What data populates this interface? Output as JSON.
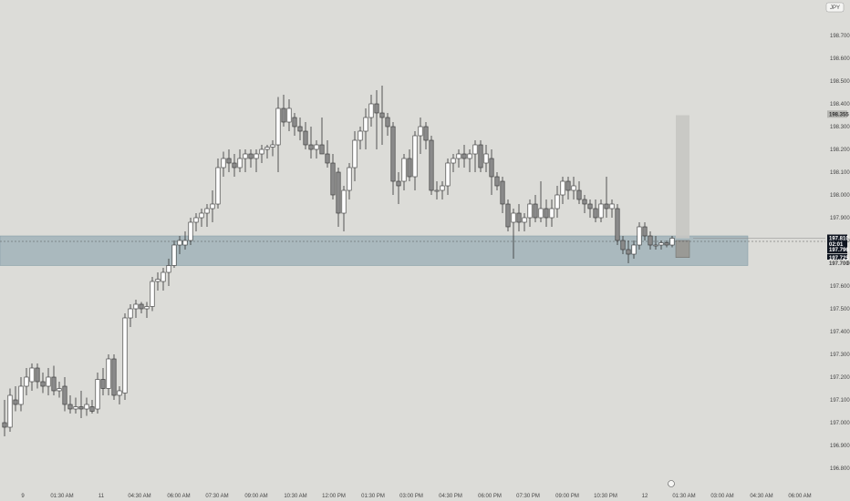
{
  "symbol_currency": "JPY",
  "chart_data": {
    "type": "candlestick",
    "y_axis": {
      "ylim": [
        196.75,
        198.95
      ],
      "ticks": [
        196.8,
        196.9,
        197.0,
        197.1,
        197.2,
        197.3,
        197.4,
        197.5,
        197.6,
        197.7,
        197.8,
        197.9,
        198.0,
        198.1,
        198.2,
        198.3,
        198.4,
        198.5,
        198.6,
        198.7
      ],
      "tick_labels": [
        "196.800",
        "196.900",
        "197.000",
        "197.100",
        "197.200",
        "197.300",
        "197.400",
        "197.500",
        "197.600",
        "197.700",
        "197.800",
        "197.900",
        "198.000",
        "198.100",
        "198.200",
        "198.300",
        "198.400",
        "198.500",
        "198.600",
        "198.700"
      ]
    },
    "x_axis": {
      "labels": [
        "9",
        "01:30 AM",
        "11",
        "04:30 AM",
        "06:00 AM",
        "07:30 AM",
        "09:00 AM",
        "10:30 AM",
        "12:00 PM",
        "01:30 PM",
        "03:00 PM",
        "04:30 PM",
        "06:00 PM",
        "07:30 PM",
        "09:00 PM",
        "10:30 PM",
        "12",
        "01:30 AM",
        "03:00 AM",
        "04:30 AM",
        "06:00 AM"
      ],
      "label_positions": [
        25,
        68,
        111,
        153,
        196,
        238,
        281,
        324,
        366,
        409,
        451,
        494,
        537,
        579,
        622,
        664,
        707,
        750,
        792,
        835,
        877
      ]
    },
    "candles": [
      {
        "x": 5,
        "o": 197.0,
        "h": 197.1,
        "l": 196.94,
        "c": 196.98
      },
      {
        "x": 11,
        "o": 196.98,
        "h": 197.15,
        "l": 196.96,
        "c": 197.12
      },
      {
        "x": 17,
        "o": 197.1,
        "h": 197.16,
        "l": 197.05,
        "c": 197.08
      },
      {
        "x": 23,
        "o": 197.08,
        "h": 197.2,
        "l": 197.05,
        "c": 197.16
      },
      {
        "x": 29,
        "o": 197.16,
        "h": 197.24,
        "l": 197.12,
        "c": 197.2
      },
      {
        "x": 35,
        "o": 197.18,
        "h": 197.26,
        "l": 197.14,
        "c": 197.24
      },
      {
        "x": 41,
        "o": 197.24,
        "h": 197.26,
        "l": 197.15,
        "c": 197.18
      },
      {
        "x": 47,
        "o": 197.18,
        "h": 197.22,
        "l": 197.13,
        "c": 197.16
      },
      {
        "x": 53,
        "o": 197.16,
        "h": 197.24,
        "l": 197.12,
        "c": 197.2
      },
      {
        "x": 59,
        "o": 197.2,
        "h": 197.25,
        "l": 197.12,
        "c": 197.14
      },
      {
        "x": 65,
        "o": 197.14,
        "h": 197.18,
        "l": 197.11,
        "c": 197.15
      },
      {
        "x": 71,
        "o": 197.16,
        "h": 197.2,
        "l": 197.05,
        "c": 197.08
      },
      {
        "x": 77,
        "o": 197.08,
        "h": 197.12,
        "l": 197.04,
        "c": 197.06
      },
      {
        "x": 83,
        "o": 197.06,
        "h": 197.11,
        "l": 197.04,
        "c": 197.07
      },
      {
        "x": 89,
        "o": 197.07,
        "h": 197.14,
        "l": 197.02,
        "c": 197.06
      },
      {
        "x": 95,
        "o": 197.06,
        "h": 197.11,
        "l": 197.03,
        "c": 197.08
      },
      {
        "x": 101,
        "o": 197.07,
        "h": 197.1,
        "l": 197.04,
        "c": 197.05
      },
      {
        "x": 107,
        "o": 197.06,
        "h": 197.22,
        "l": 197.04,
        "c": 197.19
      },
      {
        "x": 113,
        "o": 197.19,
        "h": 197.24,
        "l": 197.12,
        "c": 197.15
      },
      {
        "x": 119,
        "o": 197.15,
        "h": 197.3,
        "l": 197.12,
        "c": 197.28
      },
      {
        "x": 125,
        "o": 197.28,
        "h": 197.3,
        "l": 197.1,
        "c": 197.12
      },
      {
        "x": 131,
        "o": 197.12,
        "h": 197.16,
        "l": 197.08,
        "c": 197.14
      },
      {
        "x": 137,
        "o": 197.13,
        "h": 197.48,
        "l": 197.1,
        "c": 197.46
      },
      {
        "x": 143,
        "o": 197.46,
        "h": 197.52,
        "l": 197.42,
        "c": 197.5
      },
      {
        "x": 149,
        "o": 197.5,
        "h": 197.54,
        "l": 197.46,
        "c": 197.52
      },
      {
        "x": 155,
        "o": 197.52,
        "h": 197.53,
        "l": 197.48,
        "c": 197.5
      },
      {
        "x": 161,
        "o": 197.5,
        "h": 197.53,
        "l": 197.46,
        "c": 197.51
      },
      {
        "x": 167,
        "o": 197.51,
        "h": 197.64,
        "l": 197.49,
        "c": 197.62
      },
      {
        "x": 173,
        "o": 197.62,
        "h": 197.66,
        "l": 197.58,
        "c": 197.63
      },
      {
        "x": 179,
        "o": 197.62,
        "h": 197.68,
        "l": 197.58,
        "c": 197.66
      },
      {
        "x": 185,
        "o": 197.66,
        "h": 197.72,
        "l": 197.6,
        "c": 197.69
      },
      {
        "x": 191,
        "o": 197.69,
        "h": 197.8,
        "l": 197.68,
        "c": 197.78
      },
      {
        "x": 197,
        "o": 197.78,
        "h": 197.82,
        "l": 197.74,
        "c": 197.8
      },
      {
        "x": 203,
        "o": 197.78,
        "h": 197.84,
        "l": 197.76,
        "c": 197.8
      },
      {
        "x": 209,
        "o": 197.8,
        "h": 197.9,
        "l": 197.78,
        "c": 197.88
      },
      {
        "x": 215,
        "o": 197.88,
        "h": 197.92,
        "l": 197.84,
        "c": 197.9
      },
      {
        "x": 221,
        "o": 197.9,
        "h": 197.94,
        "l": 197.86,
        "c": 197.92
      },
      {
        "x": 227,
        "o": 197.92,
        "h": 197.96,
        "l": 197.86,
        "c": 197.94
      },
      {
        "x": 233,
        "o": 197.94,
        "h": 198.02,
        "l": 197.88,
        "c": 197.96
      },
      {
        "x": 239,
        "o": 197.96,
        "h": 198.16,
        "l": 197.94,
        "c": 198.12
      },
      {
        "x": 245,
        "o": 198.12,
        "h": 198.19,
        "l": 198.08,
        "c": 198.16
      },
      {
        "x": 251,
        "o": 198.16,
        "h": 198.2,
        "l": 198.1,
        "c": 198.14
      },
      {
        "x": 257,
        "o": 198.14,
        "h": 198.18,
        "l": 198.08,
        "c": 198.12
      },
      {
        "x": 263,
        "o": 198.12,
        "h": 198.2,
        "l": 198.1,
        "c": 198.16
      },
      {
        "x": 269,
        "o": 198.16,
        "h": 198.2,
        "l": 198.1,
        "c": 198.18
      },
      {
        "x": 275,
        "o": 198.18,
        "h": 198.2,
        "l": 198.12,
        "c": 198.16
      },
      {
        "x": 281,
        "o": 198.16,
        "h": 198.2,
        "l": 198.1,
        "c": 198.18
      },
      {
        "x": 287,
        "o": 198.18,
        "h": 198.22,
        "l": 198.14,
        "c": 198.2
      },
      {
        "x": 293,
        "o": 198.2,
        "h": 198.22,
        "l": 198.16,
        "c": 198.21
      },
      {
        "x": 299,
        "o": 198.21,
        "h": 198.24,
        "l": 198.17,
        "c": 198.22
      },
      {
        "x": 305,
        "o": 198.22,
        "h": 198.43,
        "l": 198.1,
        "c": 198.38
      },
      {
        "x": 311,
        "o": 198.38,
        "h": 198.44,
        "l": 198.3,
        "c": 198.32
      },
      {
        "x": 317,
        "o": 198.32,
        "h": 198.42,
        "l": 198.28,
        "c": 198.38
      },
      {
        "x": 323,
        "o": 198.34,
        "h": 198.36,
        "l": 198.26,
        "c": 198.3
      },
      {
        "x": 329,
        "o": 198.3,
        "h": 198.34,
        "l": 198.24,
        "c": 198.28
      },
      {
        "x": 335,
        "o": 198.28,
        "h": 198.32,
        "l": 198.2,
        "c": 198.22
      },
      {
        "x": 341,
        "o": 198.22,
        "h": 198.3,
        "l": 198.16,
        "c": 198.2
      },
      {
        "x": 347,
        "o": 198.2,
        "h": 198.24,
        "l": 198.16,
        "c": 198.22
      },
      {
        "x": 353,
        "o": 198.22,
        "h": 198.34,
        "l": 198.18,
        "c": 198.18
      },
      {
        "x": 359,
        "o": 198.18,
        "h": 198.24,
        "l": 198.12,
        "c": 198.14
      },
      {
        "x": 365,
        "o": 198.14,
        "h": 198.18,
        "l": 197.98,
        "c": 198.0
      },
      {
        "x": 371,
        "o": 198.1,
        "h": 198.12,
        "l": 197.86,
        "c": 197.92
      },
      {
        "x": 377,
        "o": 197.92,
        "h": 198.04,
        "l": 197.84,
        "c": 198.02
      },
      {
        "x": 383,
        "o": 198.02,
        "h": 198.14,
        "l": 197.98,
        "c": 198.12
      },
      {
        "x": 389,
        "o": 198.12,
        "h": 198.28,
        "l": 198.06,
        "c": 198.24
      },
      {
        "x": 395,
        "o": 198.24,
        "h": 198.3,
        "l": 198.2,
        "c": 198.28
      },
      {
        "x": 401,
        "o": 198.28,
        "h": 198.38,
        "l": 198.2,
        "c": 198.34
      },
      {
        "x": 407,
        "o": 198.34,
        "h": 198.44,
        "l": 198.3,
        "c": 198.4
      },
      {
        "x": 413,
        "o": 198.4,
        "h": 198.46,
        "l": 198.2,
        "c": 198.36
      },
      {
        "x": 419,
        "o": 198.36,
        "h": 198.48,
        "l": 198.22,
        "c": 198.34
      },
      {
        "x": 425,
        "o": 198.34,
        "h": 198.36,
        "l": 198.26,
        "c": 198.3
      },
      {
        "x": 431,
        "o": 198.3,
        "h": 198.32,
        "l": 198.0,
        "c": 198.06
      },
      {
        "x": 437,
        "o": 198.06,
        "h": 198.1,
        "l": 197.96,
        "c": 198.04
      },
      {
        "x": 443,
        "o": 198.06,
        "h": 198.18,
        "l": 198.02,
        "c": 198.16
      },
      {
        "x": 449,
        "o": 198.16,
        "h": 198.2,
        "l": 198.06,
        "c": 198.08
      },
      {
        "x": 455,
        "o": 198.08,
        "h": 198.28,
        "l": 198.02,
        "c": 198.26
      },
      {
        "x": 461,
        "o": 198.26,
        "h": 198.34,
        "l": 198.18,
        "c": 198.3
      },
      {
        "x": 467,
        "o": 198.3,
        "h": 198.32,
        "l": 198.2,
        "c": 198.24
      },
      {
        "x": 473,
        "o": 198.24,
        "h": 198.26,
        "l": 198.0,
        "c": 198.02
      },
      {
        "x": 479,
        "o": 198.02,
        "h": 198.06,
        "l": 197.98,
        "c": 198.02
      },
      {
        "x": 485,
        "o": 198.02,
        "h": 198.06,
        "l": 197.98,
        "c": 198.04
      },
      {
        "x": 491,
        "o": 198.04,
        "h": 198.16,
        "l": 198.0,
        "c": 198.14
      },
      {
        "x": 497,
        "o": 198.14,
        "h": 198.18,
        "l": 198.1,
        "c": 198.16
      },
      {
        "x": 503,
        "o": 198.16,
        "h": 198.2,
        "l": 198.12,
        "c": 198.18
      },
      {
        "x": 509,
        "o": 198.18,
        "h": 198.22,
        "l": 198.12,
        "c": 198.16
      },
      {
        "x": 515,
        "o": 198.16,
        "h": 198.2,
        "l": 198.1,
        "c": 198.18
      },
      {
        "x": 521,
        "o": 198.18,
        "h": 198.24,
        "l": 198.1,
        "c": 198.22
      },
      {
        "x": 527,
        "o": 198.22,
        "h": 198.24,
        "l": 198.1,
        "c": 198.12
      },
      {
        "x": 533,
        "o": 198.14,
        "h": 198.22,
        "l": 198.1,
        "c": 198.18
      },
      {
        "x": 539,
        "o": 198.16,
        "h": 198.2,
        "l": 198.0,
        "c": 198.08
      },
      {
        "x": 545,
        "o": 198.08,
        "h": 198.1,
        "l": 198.02,
        "c": 198.04
      },
      {
        "x": 551,
        "o": 198.06,
        "h": 198.08,
        "l": 197.92,
        "c": 197.96
      },
      {
        "x": 557,
        "o": 197.96,
        "h": 197.98,
        "l": 197.84,
        "c": 197.86
      },
      {
        "x": 563,
        "o": 197.88,
        "h": 197.94,
        "l": 197.72,
        "c": 197.92
      },
      {
        "x": 569,
        "o": 197.92,
        "h": 197.96,
        "l": 197.84,
        "c": 197.88
      },
      {
        "x": 575,
        "o": 197.88,
        "h": 197.92,
        "l": 197.84,
        "c": 197.9
      },
      {
        "x": 581,
        "o": 197.9,
        "h": 197.98,
        "l": 197.86,
        "c": 197.96
      },
      {
        "x": 587,
        "o": 197.96,
        "h": 198.0,
        "l": 197.88,
        "c": 197.9
      },
      {
        "x": 593,
        "o": 197.9,
        "h": 198.06,
        "l": 197.88,
        "c": 197.94
      },
      {
        "x": 599,
        "o": 197.94,
        "h": 197.98,
        "l": 197.86,
        "c": 197.9
      },
      {
        "x": 605,
        "o": 197.9,
        "h": 197.98,
        "l": 197.86,
        "c": 197.94
      },
      {
        "x": 611,
        "o": 197.94,
        "h": 198.04,
        "l": 197.9,
        "c": 198.0
      },
      {
        "x": 617,
        "o": 198.0,
        "h": 198.08,
        "l": 197.96,
        "c": 198.06
      },
      {
        "x": 623,
        "o": 198.06,
        "h": 198.08,
        "l": 197.98,
        "c": 198.02
      },
      {
        "x": 629,
        "o": 198.02,
        "h": 198.08,
        "l": 197.98,
        "c": 198.04
      },
      {
        "x": 635,
        "o": 198.02,
        "h": 198.06,
        "l": 197.96,
        "c": 197.98
      },
      {
        "x": 641,
        "o": 197.98,
        "h": 198.0,
        "l": 197.92,
        "c": 197.96
      },
      {
        "x": 647,
        "o": 197.96,
        "h": 197.98,
        "l": 197.9,
        "c": 197.94
      },
      {
        "x": 653,
        "o": 197.94,
        "h": 197.98,
        "l": 197.88,
        "c": 197.9
      },
      {
        "x": 659,
        "o": 197.9,
        "h": 197.98,
        "l": 197.88,
        "c": 197.96
      },
      {
        "x": 665,
        "o": 197.96,
        "h": 198.08,
        "l": 197.9,
        "c": 197.94
      },
      {
        "x": 671,
        "o": 197.94,
        "h": 197.98,
        "l": 197.9,
        "c": 197.96
      },
      {
        "x": 677,
        "o": 197.94,
        "h": 197.96,
        "l": 197.78,
        "c": 197.8
      },
      {
        "x": 683,
        "o": 197.8,
        "h": 197.82,
        "l": 197.74,
        "c": 197.76
      },
      {
        "x": 689,
        "o": 197.76,
        "h": 197.8,
        "l": 197.7,
        "c": 197.74
      },
      {
        "x": 695,
        "o": 197.74,
        "h": 197.8,
        "l": 197.72,
        "c": 197.78
      },
      {
        "x": 701,
        "o": 197.78,
        "h": 197.88,
        "l": 197.76,
        "c": 197.86
      },
      {
        "x": 707,
        "o": 197.86,
        "h": 197.88,
        "l": 197.8,
        "c": 197.82
      },
      {
        "x": 713,
        "o": 197.82,
        "h": 197.84,
        "l": 197.76,
        "c": 197.78
      },
      {
        "x": 719,
        "o": 197.78,
        "h": 197.82,
        "l": 197.76,
        "c": 197.78
      },
      {
        "x": 725,
        "o": 197.78,
        "h": 197.8,
        "l": 197.76,
        "c": 197.79
      },
      {
        "x": 731,
        "o": 197.79,
        "h": 197.8,
        "l": 197.77,
        "c": 197.78
      },
      {
        "x": 737,
        "o": 197.78,
        "h": 197.82,
        "l": 197.77,
        "c": 197.81
      }
    ],
    "zone": {
      "y_top": 197.82,
      "y_bottom": 197.69,
      "color": "#8fa6b0"
    },
    "projection": {
      "y_top": 198.35,
      "y_bottom": 197.81,
      "color": "#c7c7c3"
    },
    "projection_small": {
      "y_top": 197.8,
      "y_bottom": 197.725,
      "color": "#9a9a96"
    },
    "dashed_level": 197.796,
    "crosshair_level": 197.81,
    "badges": [
      {
        "value": 198.355,
        "label": "198.355",
        "bg": "#b6b6b2",
        "fg": "#333333"
      },
      {
        "value": 197.81,
        "label": "197.810",
        "bg": "#0f1520",
        "fg": "#ffffff"
      },
      {
        "value": 197.785,
        "label": "02:01",
        "bg": "#0f1520",
        "fg": "#ffffff"
      },
      {
        "value": 197.76,
        "label": "197.796",
        "bg": "#0f1520",
        "fg": "#ffffff"
      },
      {
        "value": 197.725,
        "label": "197.725",
        "bg": "#0f1520",
        "fg": "#ffffff"
      },
      {
        "value": 197.7,
        "label": "197.700",
        "bg": "#dcdcd8",
        "fg": "#444444"
      }
    ],
    "colors": {
      "bull_fill": "#ffffff",
      "bear_fill": "#8a8a8a",
      "wick": "#333333",
      "background": "#dcdcd8"
    }
  }
}
